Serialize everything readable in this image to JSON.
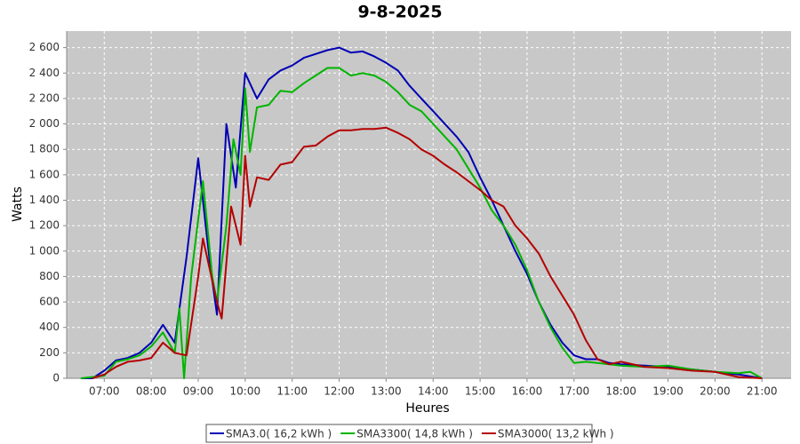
{
  "chart_data": {
    "type": "line",
    "title": "9-8-2025",
    "x_label": "Heures",
    "y_label": "Watts",
    "xlim": [
      6.2,
      21.62
    ],
    "ylim": [
      0,
      2730
    ],
    "grid": true,
    "legend": "bottom",
    "xticks": [
      {
        "value": 7,
        "label": "07:00"
      },
      {
        "value": 8,
        "label": "08:00"
      },
      {
        "value": 9,
        "label": "09:00"
      },
      {
        "value": 10,
        "label": "10:00"
      },
      {
        "value": 11,
        "label": "11:00"
      },
      {
        "value": 12,
        "label": "12:00"
      },
      {
        "value": 13,
        "label": "13:00"
      },
      {
        "value": 14,
        "label": "14:00"
      },
      {
        "value": 15,
        "label": "15:00"
      },
      {
        "value": 16,
        "label": "16:00"
      },
      {
        "value": 17,
        "label": "17:00"
      },
      {
        "value": 18,
        "label": "18:00"
      },
      {
        "value": 19,
        "label": "19:00"
      },
      {
        "value": 20,
        "label": "20:00"
      },
      {
        "value": 21,
        "label": "21:00"
      }
    ],
    "yticks": [
      0,
      200,
      400,
      600,
      800,
      {
        "value": 1000,
        "label": "1 000"
      },
      {
        "value": 1200,
        "label": "1 200"
      },
      {
        "value": 1400,
        "label": "1 400"
      },
      {
        "value": 1600,
        "label": "1 600"
      },
      {
        "value": 1800,
        "label": "1 800"
      },
      {
        "value": 2000,
        "label": "2 000"
      },
      {
        "value": 2200,
        "label": "2 200"
      },
      {
        "value": 2400,
        "label": "2 400"
      },
      {
        "value": 2600,
        "label": "2 600"
      }
    ],
    "series": [
      {
        "name": "SMA3.0( 16,2 kWh )",
        "color": "#0000b4",
        "x": [
          6.5,
          6.75,
          7,
          7.25,
          7.5,
          7.75,
          8,
          8.25,
          8.5,
          8.75,
          9,
          9.25,
          9.4,
          9.6,
          9.8,
          10,
          10.25,
          10.5,
          10.75,
          11,
          11.25,
          11.5,
          11.75,
          12,
          12.25,
          12.5,
          12.75,
          13,
          13.25,
          13.5,
          13.75,
          14,
          14.25,
          14.5,
          14.75,
          15,
          15.25,
          15.5,
          15.75,
          16,
          16.25,
          16.5,
          16.75,
          17,
          17.25,
          17.5,
          17.75,
          18,
          18.5,
          19,
          19.5,
          20,
          20.5,
          21
        ],
        "values": [
          0,
          0,
          60,
          140,
          160,
          200,
          280,
          420,
          280,
          950,
          1730,
          900,
          500,
          2000,
          1500,
          2400,
          2200,
          2350,
          2420,
          2460,
          2520,
          2550,
          2580,
          2600,
          2560,
          2570,
          2530,
          2480,
          2420,
          2300,
          2200,
          2100,
          2000,
          1900,
          1780,
          1580,
          1400,
          1200,
          1000,
          820,
          600,
          420,
          280,
          180,
          150,
          150,
          120,
          110,
          100,
          90,
          70,
          50,
          30,
          0
        ]
      },
      {
        "name": "SMA3300( 14,8 kWh )",
        "color": "#00b400",
        "x": [
          6.5,
          7,
          7.25,
          7.5,
          7.75,
          8,
          8.25,
          8.5,
          8.6,
          8.7,
          8.85,
          9.1,
          9.3,
          9.4,
          9.6,
          9.75,
          9.9,
          10,
          10.1,
          10.25,
          10.5,
          10.75,
          11,
          11.25,
          11.5,
          11.75,
          12,
          12.25,
          12.5,
          12.75,
          13,
          13.25,
          13.5,
          13.75,
          14,
          14.25,
          14.5,
          14.75,
          15,
          15.25,
          15.5,
          15.75,
          16,
          16.25,
          16.5,
          16.75,
          17,
          17.25,
          17.5,
          17.75,
          18,
          18.5,
          19,
          19.5,
          20,
          20.5,
          20.75,
          21
        ],
        "values": [
          0,
          20,
          130,
          150,
          180,
          250,
          360,
          200,
          550,
          0,
          800,
          1550,
          800,
          600,
          1200,
          1880,
          1600,
          2280,
          1780,
          2130,
          2150,
          2260,
          2250,
          2320,
          2380,
          2440,
          2440,
          2380,
          2400,
          2380,
          2330,
          2250,
          2150,
          2100,
          2000,
          1900,
          1800,
          1650,
          1500,
          1320,
          1200,
          1050,
          850,
          600,
          400,
          240,
          120,
          130,
          120,
          110,
          100,
          90,
          100,
          70,
          50,
          40,
          50,
          0
        ]
      },
      {
        "name": "SMA3000( 13,2 kWh )",
        "color": "#b40000",
        "x": [
          6.75,
          7,
          7.25,
          7.5,
          7.75,
          8,
          8.25,
          8.5,
          8.75,
          9,
          9.1,
          9.4,
          9.5,
          9.7,
          9.9,
          10,
          10.1,
          10.25,
          10.5,
          10.75,
          11,
          11.25,
          11.5,
          11.75,
          12,
          12.25,
          12.5,
          12.75,
          13,
          13.25,
          13.5,
          13.75,
          14,
          14.25,
          14.5,
          14.75,
          15,
          15.25,
          15.5,
          15.75,
          16,
          16.25,
          16.5,
          16.75,
          17,
          17.25,
          17.5,
          17.75,
          18,
          18.5,
          19,
          19.5,
          20,
          20.5,
          21
        ],
        "values": [
          0,
          30,
          90,
          130,
          140,
          160,
          280,
          200,
          180,
          800,
          1100,
          600,
          470,
          1350,
          1050,
          1750,
          1350,
          1580,
          1560,
          1680,
          1700,
          1820,
          1830,
          1900,
          1950,
          1950,
          1960,
          1960,
          1970,
          1930,
          1880,
          1800,
          1750,
          1680,
          1620,
          1550,
          1480,
          1400,
          1350,
          1200,
          1100,
          980,
          800,
          650,
          500,
          300,
          150,
          110,
          130,
          90,
          80,
          60,
          50,
          10,
          0
        ]
      }
    ]
  }
}
